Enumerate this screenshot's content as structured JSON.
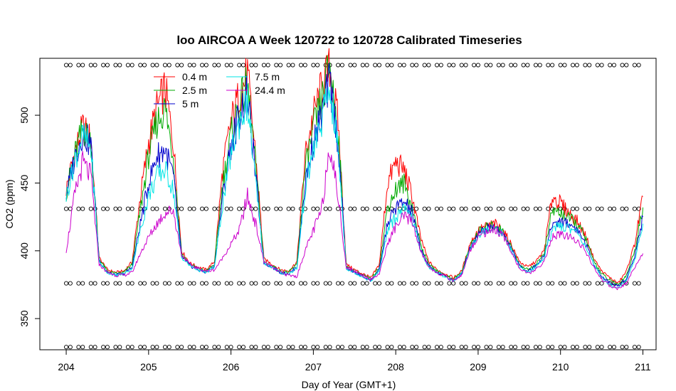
{
  "chart_data": {
    "type": "line",
    "title": "loo AIRCOA A  Week 120722 to 120728  Calibrated Timeseries",
    "xlabel": "Day of Year (GMT+1)",
    "ylabel": "CO2 (ppm)",
    "xlim": [
      203.68,
      211.16
    ],
    "ylim": [
      327,
      542
    ],
    "x_ticks": [
      204,
      205,
      206,
      207,
      208,
      209,
      210,
      211
    ],
    "y_ticks": [
      350,
      400,
      450,
      500
    ],
    "legend": {
      "position": "top-left-inside"
    },
    "grid": false,
    "series": [
      {
        "name": "0.4 m",
        "color": "#ff0000",
        "x": [
          204.0,
          204.1,
          204.2,
          204.3,
          204.4,
          204.5,
          204.6,
          204.7,
          204.8,
          204.9,
          205.0,
          205.1,
          205.2,
          205.3,
          205.4,
          205.5,
          205.6,
          205.7,
          205.8,
          205.9,
          206.0,
          206.1,
          206.2,
          206.3,
          206.4,
          206.5,
          206.6,
          206.7,
          206.8,
          206.9,
          207.0,
          207.1,
          207.2,
          207.3,
          207.4,
          207.5,
          207.6,
          207.7,
          207.8,
          207.9,
          208.0,
          208.1,
          208.2,
          208.3,
          208.4,
          208.5,
          208.6,
          208.7,
          208.8,
          208.9,
          209.0,
          209.1,
          209.2,
          209.3,
          209.4,
          209.5,
          209.6,
          209.7,
          209.8,
          209.9,
          210.0,
          210.1,
          210.2,
          210.3,
          210.4,
          210.5,
          210.6,
          210.7,
          210.8,
          210.9,
          211.0
        ],
        "values": [
          445,
          472,
          491,
          482,
          395,
          386,
          384,
          385,
          392,
          440,
          480,
          505,
          520,
          480,
          400,
          391,
          388,
          386,
          392,
          460,
          495,
          515,
          530,
          470,
          394,
          390,
          386,
          385,
          392,
          470,
          500,
          520,
          535,
          495,
          390,
          386,
          383,
          380,
          390,
          450,
          465,
          460,
          440,
          410,
          392,
          386,
          383,
          380,
          385,
          405,
          415,
          418,
          420,
          415,
          405,
          392,
          388,
          392,
          400,
          440,
          435,
          428,
          422,
          412,
          395,
          385,
          380,
          376,
          385,
          405,
          440
        ]
      },
      {
        "name": "2.5 m",
        "color": "#00aa00",
        "x": [
          204.0,
          204.1,
          204.2,
          204.3,
          204.4,
          204.5,
          204.6,
          204.7,
          204.8,
          204.9,
          205.0,
          205.1,
          205.2,
          205.3,
          205.4,
          205.5,
          205.6,
          205.7,
          205.8,
          205.9,
          206.0,
          206.1,
          206.2,
          206.3,
          206.4,
          206.5,
          206.6,
          206.7,
          206.8,
          206.9,
          207.0,
          207.1,
          207.2,
          207.3,
          207.4,
          207.5,
          207.6,
          207.7,
          207.8,
          207.9,
          208.0,
          208.1,
          208.2,
          208.3,
          208.4,
          208.5,
          208.6,
          208.7,
          208.8,
          208.9,
          209.0,
          209.1,
          209.2,
          209.3,
          209.4,
          209.5,
          209.6,
          209.7,
          209.8,
          209.9,
          210.0,
          210.1,
          210.2,
          210.3,
          210.4,
          210.5,
          210.6,
          210.7,
          210.8,
          210.9,
          211.0
        ],
        "values": [
          443,
          470,
          490,
          480,
          394,
          385,
          383,
          384,
          390,
          430,
          470,
          495,
          505,
          470,
          398,
          390,
          387,
          385,
          390,
          450,
          485,
          508,
          522,
          462,
          392,
          389,
          385,
          384,
          390,
          460,
          490,
          510,
          538,
          488,
          388,
          385,
          382,
          379,
          388,
          432,
          445,
          450,
          432,
          405,
          390,
          385,
          382,
          379,
          384,
          403,
          414,
          417,
          419,
          414,
          403,
          390,
          386,
          390,
          398,
          430,
          428,
          424,
          420,
          410,
          393,
          383,
          378,
          375,
          382,
          400,
          432
        ]
      },
      {
        "name": "5 m",
        "color": "#0000cc",
        "x": [
          204.0,
          204.1,
          204.2,
          204.3,
          204.4,
          204.5,
          204.6,
          204.7,
          204.8,
          204.9,
          205.0,
          205.1,
          205.2,
          205.3,
          205.4,
          205.5,
          205.6,
          205.7,
          205.8,
          205.9,
          206.0,
          206.1,
          206.2,
          206.3,
          206.4,
          206.5,
          206.6,
          206.7,
          206.8,
          206.9,
          207.0,
          207.1,
          207.2,
          207.3,
          207.4,
          207.5,
          207.6,
          207.7,
          207.8,
          207.9,
          208.0,
          208.1,
          208.2,
          208.3,
          208.4,
          208.5,
          208.6,
          208.7,
          208.8,
          208.9,
          209.0,
          209.1,
          209.2,
          209.3,
          209.4,
          209.5,
          209.6,
          209.7,
          209.8,
          209.9,
          210.0,
          210.1,
          210.2,
          210.3,
          210.4,
          210.5,
          210.6,
          210.7,
          210.8,
          210.9,
          211.0
        ],
        "values": [
          441,
          468,
          487,
          478,
          393,
          384,
          382,
          383,
          388,
          420,
          450,
          470,
          475,
          455,
          396,
          389,
          386,
          384,
          389,
          440,
          478,
          500,
          515,
          455,
          391,
          388,
          384,
          383,
          388,
          450,
          480,
          500,
          525,
          480,
          387,
          384,
          381,
          378,
          386,
          420,
          432,
          436,
          428,
          402,
          389,
          384,
          381,
          378,
          383,
          402,
          413,
          416,
          418,
          413,
          402,
          389,
          385,
          389,
          396,
          420,
          422,
          420,
          416,
          406,
          391,
          381,
          376,
          374,
          380,
          396,
          425
        ]
      },
      {
        "name": "7.5 m",
        "color": "#00e5e5",
        "x": [
          204.0,
          204.1,
          204.2,
          204.3,
          204.4,
          204.5,
          204.6,
          204.7,
          204.8,
          204.9,
          205.0,
          205.1,
          205.2,
          205.3,
          205.4,
          205.5,
          205.6,
          205.7,
          205.8,
          205.9,
          206.0,
          206.1,
          206.2,
          206.3,
          206.4,
          206.5,
          206.6,
          206.7,
          206.8,
          206.9,
          207.0,
          207.1,
          207.2,
          207.3,
          207.4,
          207.5,
          207.6,
          207.7,
          207.8,
          207.9,
          208.0,
          208.1,
          208.2,
          208.3,
          208.4,
          208.5,
          208.6,
          208.7,
          208.8,
          208.9,
          209.0,
          209.1,
          209.2,
          209.3,
          209.4,
          209.5,
          209.6,
          209.7,
          209.8,
          209.9,
          210.0,
          210.1,
          210.2,
          210.3,
          210.4,
          210.5,
          210.6,
          210.7,
          210.8,
          210.9,
          211.0
        ],
        "values": [
          440,
          466,
          485,
          476,
          392,
          384,
          382,
          383,
          387,
          415,
          440,
          455,
          460,
          445,
          395,
          389,
          386,
          384,
          388,
          435,
          472,
          495,
          510,
          450,
          391,
          388,
          384,
          383,
          387,
          445,
          475,
          495,
          520,
          475,
          387,
          384,
          381,
          378,
          385,
          415,
          425,
          430,
          424,
          400,
          388,
          384,
          381,
          378,
          383,
          401,
          412,
          415,
          417,
          412,
          401,
          388,
          384,
          388,
          395,
          416,
          418,
          417,
          414,
          404,
          390,
          380,
          375,
          373,
          378,
          393,
          420
        ]
      },
      {
        "name": "24.4 m",
        "color": "#cc00cc",
        "x": [
          204.0,
          204.1,
          204.2,
          204.3,
          204.4,
          204.5,
          204.6,
          204.7,
          204.8,
          204.9,
          205.0,
          205.1,
          205.2,
          205.3,
          205.4,
          205.5,
          205.6,
          205.7,
          205.8,
          205.9,
          206.0,
          206.1,
          206.2,
          206.3,
          206.4,
          206.5,
          206.6,
          206.7,
          206.8,
          206.9,
          207.0,
          207.1,
          207.2,
          207.3,
          207.4,
          207.5,
          207.6,
          207.7,
          207.8,
          207.9,
          208.0,
          208.1,
          208.2,
          208.3,
          208.4,
          208.5,
          208.6,
          208.7,
          208.8,
          208.9,
          209.0,
          209.1,
          209.2,
          209.3,
          209.4,
          209.5,
          209.6,
          209.7,
          209.8,
          209.9,
          210.0,
          210.1,
          210.2,
          210.3,
          210.4,
          210.5,
          210.6,
          210.7,
          210.8,
          210.9,
          211.0
        ],
        "values": [
          400,
          440,
          465,
          455,
          390,
          384,
          382,
          382,
          384,
          398,
          410,
          420,
          428,
          430,
          397,
          390,
          387,
          385,
          386,
          395,
          405,
          415,
          440,
          420,
          392,
          388,
          384,
          382,
          381,
          400,
          415,
          430,
          480,
          440,
          388,
          385,
          382,
          379,
          383,
          405,
          418,
          425,
          422,
          400,
          388,
          384,
          381,
          378,
          382,
          400,
          411,
          414,
          416,
          411,
          400,
          387,
          383,
          386,
          392,
          410,
          412,
          410,
          408,
          400,
          388,
          379,
          374,
          372,
          376,
          388,
          398
        ]
      }
    ],
    "marker_rows": {
      "symbol": "circle",
      "y_levels": [
        537,
        431,
        376,
        329
      ],
      "x_start": 204.0,
      "x_end": 211.0,
      "spacing": 0.05,
      "pattern": "pairs"
    }
  }
}
